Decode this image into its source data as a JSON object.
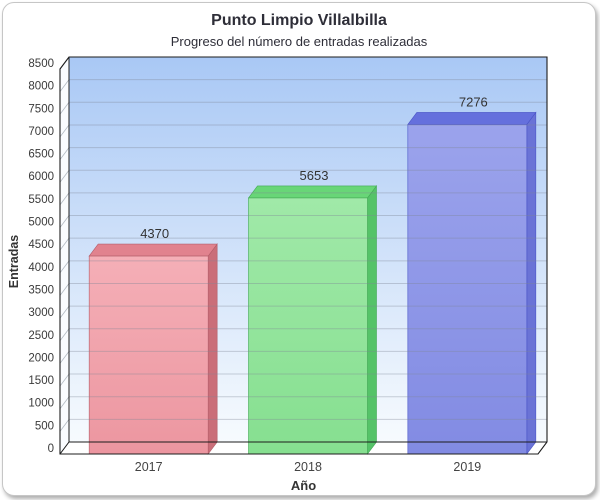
{
  "title": "Punto Limpio Villalbilla",
  "subtitle": "Progreso del número de entradas realizadas",
  "chart_data": {
    "type": "bar",
    "effect": "3d",
    "title": "Punto Limpio Villalbilla",
    "subtitle": "Progreso del número de entradas realizadas",
    "xlabel": "Año",
    "ylabel": "Entradas",
    "categories": [
      "2017",
      "2018",
      "2019"
    ],
    "values": [
      4370,
      5653,
      7276
    ],
    "value_labels": [
      "4370",
      "5653",
      "7276"
    ],
    "ylim": [
      0,
      8500
    ],
    "ytick_step": 500,
    "grid": true,
    "legend": "none",
    "bars": [
      {
        "label": "2017",
        "value": 4370,
        "front": "#ec96a0",
        "front_light": "#f5afb7",
        "top": "#e1828e",
        "side": "#ca6e79",
        "stroke": "#b25c68"
      },
      {
        "label": "2018",
        "value": 5653,
        "front": "#86df90",
        "front_light": "#a0e9a8",
        "top": "#68d677",
        "side": "#55c368",
        "stroke": "#43a855"
      },
      {
        "label": "2019",
        "value": 7276,
        "front": "#828be3",
        "front_light": "#9ba3ec",
        "top": "#6570dd",
        "side": "#6a73d6",
        "stroke": "#4a55c8"
      }
    ],
    "colors": {
      "wall_top": "#a9c8f5",
      "wall_bottom": "#f7fbfe",
      "wall_side": "#fafcff",
      "floor": "#ffffff",
      "grid_line": "#7d8796",
      "frame": "#1c1c1c",
      "axis_title_text": "#333333",
      "tick_text": "#3a3a3a",
      "value_text": "#333333",
      "category_text": "#444444"
    }
  }
}
